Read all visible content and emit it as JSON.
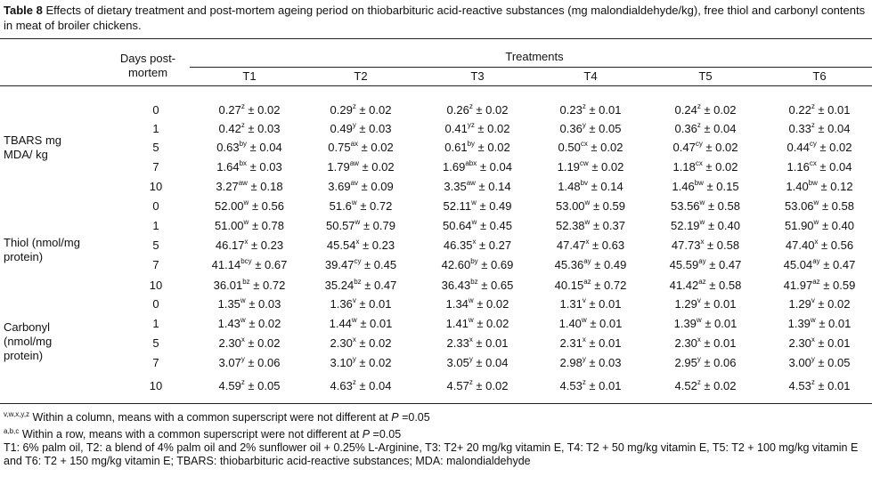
{
  "caption": {
    "label": "Table 8",
    "text": " Effects of dietary treatment and post-mortem ageing period on thiobarbituric acid-reactive substances (mg malondialdehyde/kg), free thiol and carbonyl contents in meat of broiler chickens."
  },
  "header": {
    "days_label": "Days post-\nmortem",
    "treatments_label": "Treatments",
    "columns": [
      "T1",
      "T2",
      "T3",
      "T4",
      "T5",
      "T6"
    ]
  },
  "groups": [
    {
      "name": "TBARS mg\nMDA/ kg",
      "rows": [
        {
          "day": "0",
          "cells": [
            [
              "0.27",
              "z",
              " ± 0.02"
            ],
            [
              "0.29",
              "z",
              " ± 0.02"
            ],
            [
              "0.26",
              "z",
              " ± 0.02"
            ],
            [
              "0.23",
              "z",
              " ± 0.01"
            ],
            [
              "0.24",
              "z",
              " ± 0.02"
            ],
            [
              "0.22",
              "z",
              " ± 0.01"
            ]
          ]
        },
        {
          "day": "1",
          "cells": [
            [
              "0.42",
              "z",
              " ± 0.03"
            ],
            [
              "0.49",
              "y",
              " ± 0.03"
            ],
            [
              "0.41",
              "yz",
              " ± 0.02"
            ],
            [
              "0.36",
              "y",
              " ± 0.05"
            ],
            [
              "0.36",
              "z",
              " ± 0.04"
            ],
            [
              "0.33",
              "z",
              " ± 0.04"
            ]
          ]
        },
        {
          "day": "5",
          "cells": [
            [
              "0.63",
              "by",
              " ± 0.04"
            ],
            [
              "0.75",
              "ax",
              " ± 0.02"
            ],
            [
              "0.61",
              "by",
              " ± 0.02"
            ],
            [
              "0.50",
              "cx",
              " ± 0.02"
            ],
            [
              "0.47",
              "cy",
              " ± 0.02"
            ],
            [
              "0.44",
              "cy",
              " ± 0.02"
            ]
          ]
        },
        {
          "day": "7",
          "cells": [
            [
              "1.64",
              "bx",
              " ± 0.03"
            ],
            [
              "1.79",
              "aw",
              " ± 0.02"
            ],
            [
              "1.69",
              "abx",
              " ± 0.04"
            ],
            [
              "1.19",
              "cw",
              " ± 0.02"
            ],
            [
              "1.18",
              "cx",
              " ± 0.02"
            ],
            [
              "1.16",
              "cx",
              " ± 0.04"
            ]
          ]
        },
        {
          "day": "10",
          "cells": [
            [
              "3.27",
              "aw",
              " ± 0.18"
            ],
            [
              "3.69",
              "av",
              " ± 0.09"
            ],
            [
              "3.35",
              "aw",
              " ± 0.14"
            ],
            [
              "1.48",
              "bv",
              " ± 0.14"
            ],
            [
              "1.46",
              "bw",
              " ± 0.15"
            ],
            [
              "1.40",
              "bw",
              " ± 0.12"
            ]
          ]
        }
      ]
    },
    {
      "name": "Thiol (nmol/mg\nprotein)",
      "rows": [
        {
          "day": "0",
          "cells": [
            [
              "52.00",
              "w",
              " ± 0.56"
            ],
            [
              "51.6",
              "w",
              " ± 0.72"
            ],
            [
              "52.11",
              "w",
              " ± 0.49"
            ],
            [
              "53.00",
              "w",
              " ± 0.59"
            ],
            [
              "53.56",
              "w",
              " ± 0.58"
            ],
            [
              "53.06",
              "w",
              " ± 0.58"
            ]
          ]
        },
        {
          "day": "1",
          "cells": [
            [
              "51.00",
              "w",
              " ± 0.78"
            ],
            [
              "50.57",
              "w",
              " ± 0.79"
            ],
            [
              "50.64",
              "w",
              " ± 0.45"
            ],
            [
              "52.38",
              "w",
              " ± 0.37"
            ],
            [
              "52.19",
              "w",
              " ± 0.40"
            ],
            [
              "51.90",
              "w",
              " ± 0.40"
            ]
          ]
        },
        {
          "day": "5",
          "cells": [
            [
              "46.17",
              "x",
              " ± 0.23"
            ],
            [
              "45.54",
              "x",
              " ± 0.23"
            ],
            [
              "46.35",
              "x",
              " ± 0.27"
            ],
            [
              "47.47",
              "x",
              " ± 0.63"
            ],
            [
              "47.73",
              "x",
              " ± 0.58"
            ],
            [
              "47.40",
              "x",
              " ± 0.56"
            ]
          ]
        },
        {
          "day": "7",
          "cells": [
            [
              "41.14",
              "bcy",
              " ± 0.67"
            ],
            [
              "39.47",
              "cy",
              " ± 0.45"
            ],
            [
              "42.60",
              "by",
              " ± 0.69"
            ],
            [
              "45.36",
              "ay",
              " ± 0.49"
            ],
            [
              "45.59",
              "ay",
              " ± 0.47"
            ],
            [
              "45.04",
              "ay",
              " ± 0.47"
            ]
          ]
        },
        {
          "day": "10",
          "cells": [
            [
              "36.01",
              "bz",
              " ± 0.72"
            ],
            [
              "35.24",
              "bz",
              " ± 0.47"
            ],
            [
              "36.43",
              "bz",
              " ± 0.65"
            ],
            [
              "40.15",
              "az",
              " ± 0.72"
            ],
            [
              "41.42",
              "az",
              " ± 0.58"
            ],
            [
              "41.97",
              "az",
              " ± 0.59"
            ]
          ]
        }
      ]
    },
    {
      "name": "Carbonyl\n(nmol/mg\nprotein)",
      "rows": [
        {
          "day": "0",
          "cells": [
            [
              "1.35",
              "w",
              " ± 0.03"
            ],
            [
              "1.36",
              "v",
              " ± 0.01"
            ],
            [
              "1.34",
              "w",
              " ± 0.02"
            ],
            [
              "1.31",
              "v",
              " ± 0.01"
            ],
            [
              "1.29",
              "v",
              " ± 0.01"
            ],
            [
              "1.29",
              "v",
              " ± 0.02"
            ]
          ]
        },
        {
          "day": "1",
          "cells": [
            [
              "1.43",
              "w",
              " ± 0.02"
            ],
            [
              "1.44",
              "w",
              " ± 0.01"
            ],
            [
              "1.41",
              "w",
              " ± 0.02"
            ],
            [
              "1.40",
              "w",
              " ± 0.01"
            ],
            [
              "1.39",
              "w",
              " ± 0.01"
            ],
            [
              "1.39",
              "w",
              " ± 0.01"
            ]
          ]
        },
        {
          "day": "5",
          "cells": [
            [
              "2.30",
              "x",
              " ± 0.02"
            ],
            [
              "2.30",
              "x",
              " ± 0.02"
            ],
            [
              "2.33",
              "x",
              " ± 0.01"
            ],
            [
              "2.31",
              "x",
              " ± 0.01"
            ],
            [
              "2.30",
              "x",
              " ± 0.01"
            ],
            [
              "2.30",
              "x",
              " ± 0.01"
            ]
          ]
        },
        {
          "day": "7",
          "cells": [
            [
              "3.07",
              "y",
              " ± 0.06"
            ],
            [
              "3.10",
              "y",
              " ± 0.02"
            ],
            [
              "3.05",
              "y",
              " ± 0.04"
            ],
            [
              "2.98",
              "y",
              " ± 0.03"
            ],
            [
              "2.95",
              "y",
              " ± 0.06"
            ],
            [
              "3.00",
              "y",
              " ± 0.05"
            ]
          ]
        },
        {
          "day": "10",
          "cells": [
            [
              "4.59",
              "z",
              " ± 0.05"
            ],
            [
              "4.63",
              "z",
              " ± 0.04"
            ],
            [
              "4.57",
              "z",
              " ± 0.02"
            ],
            [
              "4.53",
              "z",
              " ± 0.01"
            ],
            [
              "4.52",
              "z",
              " ± 0.02"
            ],
            [
              "4.53",
              "z",
              " ± 0.01"
            ]
          ]
        }
      ]
    }
  ],
  "footnotes": {
    "fn1_sup": "v,w,x,y,z",
    "fn1_text": " Within a column, means with a common superscript were not different at ",
    "fn1_p": "P",
    "fn1_tail": " =0.05",
    "fn2_sup": "a,b,c",
    "fn2_text": " Within a row, means with a common superscript were not different at ",
    "fn2_p": "P",
    "fn2_tail": " =0.05",
    "fn3": "T1: 6% palm oil, T2: a blend of 4% palm oil and 2% sunflower oil + 0.25% L-Arginine, T3: T2+ 20 mg/kg vitamin E, T4: T2 + 50 mg/kg vitamin E, T5: T2 + 100 mg/kg vitamin E and T6: T2 + 150 mg/kg vitamin E; TBARS: thiobarbituric acid-reactive substances; MDA: malondialdehyde"
  }
}
